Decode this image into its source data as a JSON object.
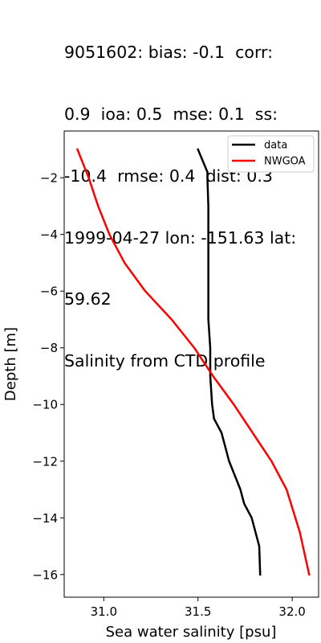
{
  "title_lines": [
    "9051602: bias: -0.1  corr:",
    "0.9  ioa: 0.5  mse: 0.1  ss:",
    "-10.4  rmse: 0.4  dist: 0.3",
    "1999-04-27 lon: -151.63 lat:",
    "59.62",
    "Salinity from CTD profile"
  ],
  "chart_data": {
    "type": "line",
    "title": "9051602: bias: -0.1  corr: 0.9  ioa: 0.5  mse: 0.1  ss: -10.4  rmse: 0.4  dist: 0.3 1999-04-27 lon: -151.63 lat: 59.62 Salinity from CTD profile",
    "xlabel": "Sea water salinity [psu]",
    "ylabel": "Depth [m]",
    "xlim": [
      30.79,
      32.14
    ],
    "ylim": [
      -16.8,
      -0.35
    ],
    "xticks": [
      31.0,
      31.5,
      32.0
    ],
    "xtick_labels": [
      "31.0",
      "31.5",
      "32.0"
    ],
    "yticks": [
      -2,
      -4,
      -6,
      -8,
      -10,
      -12,
      -14,
      -16
    ],
    "ytick_labels": [
      "−2",
      "−4",
      "−6",
      "−8",
      "−10",
      "−12",
      "−14",
      "−16"
    ],
    "grid": false,
    "legend_position": "top-right",
    "series": [
      {
        "name": "data",
        "color": "#000000",
        "x": [
          31.5,
          31.55,
          31.55,
          31.555,
          31.555,
          31.555,
          31.555,
          31.555,
          31.565,
          31.565,
          31.575,
          31.585,
          31.625,
          31.665,
          31.695,
          31.725,
          31.745,
          31.785,
          31.825,
          31.83
        ],
        "y": [
          -1.0,
          -1.8,
          -2.0,
          -3.0,
          -4.0,
          -5.0,
          -6.0,
          -7.0,
          -8.0,
          -9.0,
          -10.0,
          -10.5,
          -11.0,
          -12.0,
          -12.5,
          -13.0,
          -13.5,
          -14.0,
          -15.0,
          -16.0
        ]
      },
      {
        "name": "NWGOA",
        "color": "#ff0000",
        "x": [
          30.86,
          30.92,
          30.97,
          31.03,
          31.11,
          31.22,
          31.36,
          31.48,
          31.58,
          31.69,
          31.79,
          31.89,
          31.97,
          32.04,
          32.09
        ],
        "y": [
          -1.0,
          -2.0,
          -3.0,
          -4.0,
          -5.0,
          -6.0,
          -7.0,
          -8.0,
          -9.0,
          -10.0,
          -11.0,
          -12.0,
          -13.0,
          -14.5,
          -16.0
        ]
      }
    ]
  }
}
